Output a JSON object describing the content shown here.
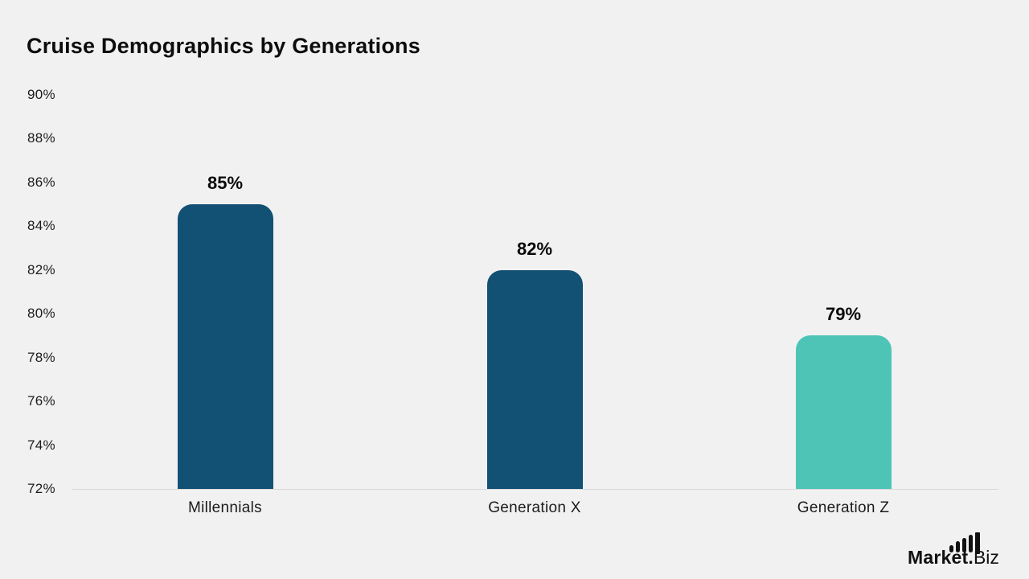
{
  "page": {
    "background_color": "#f1f1f1",
    "axis_line_color": "#d9d9d9"
  },
  "chart_data": {
    "type": "bar",
    "title": "Cruise Demographics by Generations",
    "categories": [
      "Millennials",
      "Generation X",
      "Generation Z"
    ],
    "values": [
      85,
      82,
      79
    ],
    "value_labels": [
      "85%",
      "82%",
      "79%"
    ],
    "bar_colors": [
      "#125074",
      "#125074",
      "#4ec4b6"
    ],
    "ytick_labels": [
      "90%",
      "88%",
      "86%",
      "84%",
      "82%",
      "80%",
      "78%",
      "76%",
      "74%",
      "72%"
    ],
    "ytick_values": [
      90,
      88,
      86,
      84,
      82,
      80,
      78,
      76,
      74,
      72
    ],
    "ylim": [
      72,
      90
    ],
    "xlabel": "",
    "ylabel": "",
    "grid": false,
    "legend": false,
    "bar_corner": "rounded-top"
  },
  "branding": {
    "name_bold": "Market.",
    "name_light": "Biz",
    "icon": "bar-chart-icon",
    "color": "#111111"
  }
}
